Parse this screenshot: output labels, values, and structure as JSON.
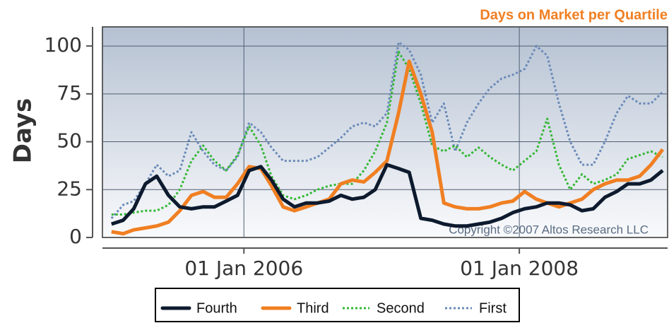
{
  "chart_data": {
    "type": "line",
    "title": "Days on Market per Quartile",
    "y_label": "Days",
    "annotation": "Copyright ©2007 Altos Research LLC",
    "x": [
      "2005-01-15",
      "2005-02-15",
      "2005-03-15",
      "2005-04-15",
      "2005-05-15",
      "2005-06-15",
      "2005-07-15",
      "2005-08-15",
      "2005-09-15",
      "2005-10-15",
      "2005-11-15",
      "2005-12-15",
      "2006-01-15",
      "2006-02-15",
      "2006-03-15",
      "2006-04-15",
      "2006-05-15",
      "2006-06-15",
      "2006-07-15",
      "2006-08-15",
      "2006-09-15",
      "2006-10-15",
      "2006-11-15",
      "2006-12-15",
      "2007-01-15",
      "2007-02-15",
      "2007-03-15",
      "2007-04-15",
      "2007-05-15",
      "2007-06-15",
      "2007-07-15",
      "2007-08-15",
      "2007-09-15",
      "2007-10-15",
      "2007-11-15",
      "2007-12-15",
      "2008-01-15",
      "2008-02-15",
      "2008-03-15",
      "2008-04-15",
      "2008-05-15",
      "2008-06-15",
      "2008-07-15",
      "2008-08-15",
      "2008-09-15",
      "2008-10-15",
      "2008-11-15",
      "2008-12-15",
      "2009-01-15"
    ],
    "xlim": [
      "2004-12-22",
      "2009-01-28"
    ],
    "xticks": [
      {
        "value": "2006-01-01",
        "label": "01 Jan 2006"
      },
      {
        "value": "2008-01-01",
        "label": "01 Jan 2008"
      }
    ],
    "ylim": [
      0,
      110
    ],
    "yticks": [
      0,
      25,
      50,
      75,
      100
    ],
    "grid": true,
    "legend": "bottom",
    "series": [
      {
        "name": "Fourth",
        "color": "#0d1a2e",
        "width": 5,
        "dash": "none",
        "values": [
          7,
          9,
          15,
          28,
          32,
          22,
          16,
          15,
          16,
          16,
          19,
          22,
          35,
          37,
          30,
          20,
          16,
          18,
          18,
          19,
          22,
          20,
          21,
          25,
          38,
          36,
          34,
          10,
          9,
          7,
          6,
          6,
          7,
          8,
          10,
          13,
          15,
          16,
          18,
          18,
          17,
          14,
          15,
          21,
          24,
          28,
          28,
          30,
          35
        ]
      },
      {
        "name": "Third",
        "color": "#f07f22",
        "width": 5,
        "dash": "none",
        "values": [
          3,
          2,
          4,
          5,
          6,
          8,
          14,
          22,
          24,
          21,
          21,
          28,
          37,
          36,
          27,
          16,
          14,
          16,
          18,
          20,
          28,
          30,
          29,
          34,
          40,
          65,
          92,
          75,
          55,
          18,
          16,
          15,
          15,
          16,
          18,
          19,
          24,
          20,
          18,
          16,
          18,
          20,
          25,
          28,
          30,
          30,
          32,
          38,
          46
        ]
      },
      {
        "name": "Second",
        "color": "#33b833",
        "width": 3,
        "dash": "3,3",
        "values": [
          12,
          12,
          13,
          14,
          14,
          17,
          25,
          40,
          48,
          40,
          35,
          43,
          58,
          48,
          32,
          22,
          20,
          22,
          25,
          27,
          28,
          28,
          35,
          45,
          60,
          97,
          88,
          70,
          48,
          45,
          48,
          42,
          47,
          42,
          38,
          35,
          40,
          45,
          62,
          38,
          25,
          33,
          28,
          30,
          33,
          41,
          43,
          45,
          42
        ]
      },
      {
        "name": "First",
        "color": "#6a8ab8",
        "width": 3,
        "dash": "3,3",
        "values": [
          10,
          17,
          19,
          28,
          38,
          32,
          35,
          55,
          45,
          38,
          35,
          42,
          60,
          55,
          47,
          40,
          40,
          40,
          42,
          47,
          52,
          58,
          60,
          58,
          65,
          102,
          98,
          85,
          60,
          70,
          45,
          60,
          70,
          78,
          83,
          85,
          88,
          100,
          95,
          70,
          50,
          38,
          38,
          50,
          65,
          74,
          70,
          70,
          76
        ]
      }
    ]
  }
}
